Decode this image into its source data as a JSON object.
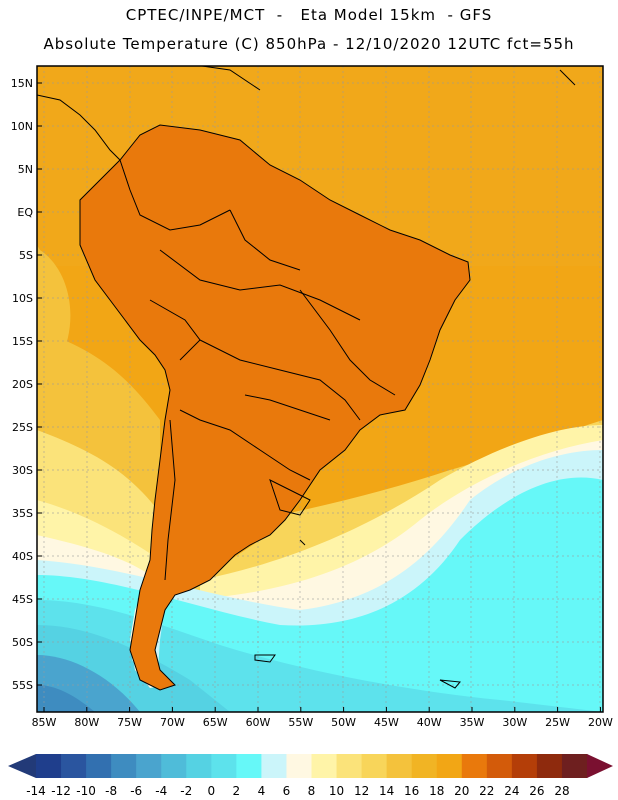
{
  "title": {
    "line1": "CPTEC/INPE/MCT  -   Eta Model 15km  - GFS",
    "line2": "Absolute Temperature (C) 850hPa - 12/10/2020 12UTC fct=55h"
  },
  "map": {
    "lat_labels": [
      "15N",
      "10N",
      "5N",
      "EQ",
      "5S",
      "10S",
      "15S",
      "20S",
      "25S",
      "30S",
      "35S",
      "40S",
      "45S",
      "50S",
      "55S"
    ],
    "lon_labels": [
      "85W",
      "80W",
      "75W",
      "70W",
      "65W",
      "60W",
      "55W",
      "50W",
      "45W",
      "40W",
      "35W",
      "30W",
      "25W",
      "20W"
    ]
  },
  "colorbar": {
    "labels": [
      "-14",
      "-12",
      "-10",
      "-8",
      "-6",
      "-4",
      "-2",
      "0",
      "2",
      "4",
      "6",
      "8",
      "10",
      "12",
      "14",
      "16",
      "18",
      "20",
      "22",
      "24",
      "26",
      "28"
    ],
    "colors": [
      "#1f3e8c",
      "#2a559f",
      "#3270b0",
      "#3e8cc0",
      "#4aa4ce",
      "#4fbcd9",
      "#55d2e3",
      "#5de2ec",
      "#66f8f8",
      "#cbf5fa",
      "#fff8e2",
      "#fff4a8",
      "#fbe37a",
      "#f8d55a",
      "#f4c23c",
      "#f1b424",
      "#f2a615",
      "#e9790c",
      "#d35b0a",
      "#b43e08",
      "#8e2a0d",
      "#6e1f1f"
    ],
    "under_color": "#223a78",
    "over_color": "#7a1030"
  }
}
